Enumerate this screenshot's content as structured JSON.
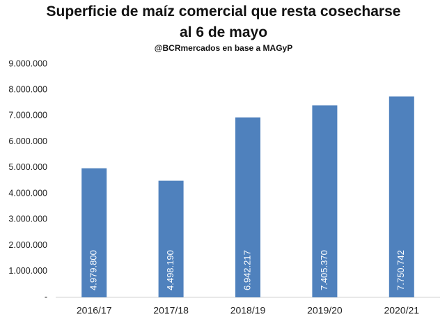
{
  "chart_data": {
    "type": "bar",
    "title": "Superficie de maíz comercial que resta cosecharse al 6 de mayo",
    "subtitle": "@BCRmercados en base a MAGyP",
    "categories": [
      "2016/17",
      "2017/18",
      "2018/19",
      "2019/20",
      "2020/21"
    ],
    "values": [
      4979800,
      4498190,
      6942217,
      7405370,
      7750742
    ],
    "value_labels": [
      "4.979.800",
      "4.498.190",
      "6.942.217",
      "7.405.370",
      "7.750.742"
    ],
    "color": "#4f81bd",
    "ylim": [
      0,
      9000000
    ],
    "yticks": [
      {
        "value": 0,
        "label": "-"
      },
      {
        "value": 1000000,
        "label": "1.000.000"
      },
      {
        "value": 2000000,
        "label": "2.000.000"
      },
      {
        "value": 3000000,
        "label": "3.000.000"
      },
      {
        "value": 4000000,
        "label": "4.000.000"
      },
      {
        "value": 5000000,
        "label": "5.000.000"
      },
      {
        "value": 6000000,
        "label": "6.000.000"
      },
      {
        "value": 7000000,
        "label": "7.000.000"
      },
      {
        "value": 8000000,
        "label": "8.000.000"
      },
      {
        "value": 9000000,
        "label": "9.000.000"
      }
    ],
    "grid": false
  }
}
